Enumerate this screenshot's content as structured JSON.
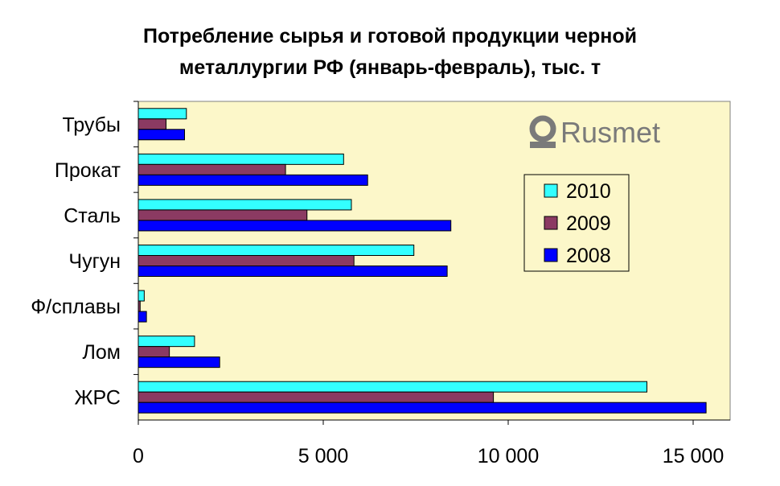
{
  "chart_data": {
    "type": "bar",
    "orientation": "horizontal",
    "title_line1": "Потребление сырья и готовой продукции черной",
    "title_line2": "металлургии РФ (январь-февраль), тыс. т",
    "categories": [
      "Трубы",
      "Прокат",
      "Сталь",
      "Чугун",
      "Ф/сплавы",
      "Лом",
      "ЖРС"
    ],
    "series": [
      {
        "name": "2010",
        "color": "#33ffff",
        "values": [
          1300,
          5550,
          5760,
          7450,
          160,
          1520,
          13750
        ]
      },
      {
        "name": "2009",
        "color": "#8b3a62",
        "values": [
          750,
          3980,
          4560,
          5830,
          50,
          840,
          9600
        ]
      },
      {
        "name": "2008",
        "color": "#0000ff",
        "values": [
          1250,
          6200,
          8450,
          8350,
          220,
          2200,
          15350
        ]
      }
    ],
    "x_ticks": [
      "0",
      "5 000",
      "10 000",
      "15 000"
    ],
    "x_tick_values": [
      0,
      5000,
      10000,
      15000
    ],
    "xlim": [
      0,
      16000
    ],
    "legend_position": "right",
    "grid": false,
    "plot_background": "#fcf7c9",
    "watermark": "Rusmet"
  }
}
